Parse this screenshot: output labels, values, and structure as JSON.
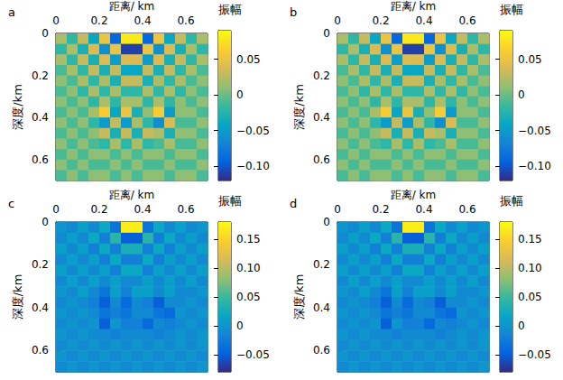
{
  "chart_data": [
    {
      "type": "heatmap",
      "title": "a",
      "xlabel": "距离/ km",
      "ylabel": "深度/km",
      "x": [
        0.025,
        0.075,
        0.125,
        0.175,
        0.225,
        0.275,
        0.325,
        0.375,
        0.425,
        0.475,
        0.525,
        0.575,
        0.625,
        0.675
      ],
      "y": [
        0.025,
        0.075,
        0.125,
        0.175,
        0.225,
        0.275,
        0.325,
        0.375,
        0.425,
        0.475,
        0.525,
        0.575,
        0.625,
        0.675
      ],
      "z": [
        [
          0.02,
          -0.02,
          0.03,
          -0.04,
          0.05,
          -0.09,
          0.08,
          0.08,
          -0.09,
          0.05,
          -0.04,
          0.03,
          -0.02,
          0.02
        ],
        [
          -0.02,
          0.02,
          -0.03,
          0.04,
          -0.06,
          0.05,
          -0.11,
          -0.11,
          0.05,
          -0.06,
          0.04,
          -0.03,
          0.02,
          -0.02
        ],
        [
          0.02,
          -0.02,
          0.03,
          -0.03,
          0.04,
          -0.05,
          0.04,
          0.04,
          -0.05,
          0.04,
          -0.03,
          0.03,
          -0.02,
          0.02
        ],
        [
          -0.01,
          0.02,
          -0.02,
          0.03,
          -0.03,
          0.03,
          -0.04,
          -0.04,
          0.03,
          -0.03,
          0.03,
          -0.02,
          0.02,
          -0.01
        ],
        [
          0.01,
          -0.01,
          0.02,
          -0.02,
          0.02,
          -0.03,
          0.03,
          0.03,
          -0.03,
          0.02,
          -0.02,
          0.02,
          -0.01,
          0.01
        ],
        [
          -0.01,
          0.01,
          -0.02,
          0.02,
          -0.02,
          0.02,
          -0.02,
          -0.02,
          0.02,
          -0.02,
          0.02,
          -0.02,
          0.01,
          -0.01
        ],
        [
          0.01,
          -0.01,
          0.01,
          -0.02,
          0.02,
          -0.02,
          0.02,
          0.02,
          -0.02,
          0.02,
          -0.02,
          0.01,
          -0.01,
          0.01
        ],
        [
          -0.01,
          0.01,
          -0.01,
          0.02,
          0.06,
          -0.04,
          0.05,
          -0.03,
          0.01,
          0.06,
          -0.05,
          0.01,
          0.01,
          -0.01
        ],
        [
          0.01,
          -0.01,
          0.01,
          -0.02,
          -0.05,
          0.03,
          -0.05,
          0.02,
          -0.02,
          -0.06,
          0.04,
          -0.01,
          -0.01,
          0.01
        ],
        [
          -0.01,
          0.01,
          -0.01,
          0.01,
          0.03,
          -0.03,
          0.03,
          -0.03,
          0.03,
          0.02,
          -0.03,
          0.01,
          0.01,
          -0.01
        ],
        [
          0.01,
          -0.01,
          0.01,
          -0.01,
          -0.02,
          0.02,
          -0.02,
          0.02,
          -0.02,
          -0.01,
          0.02,
          -0.01,
          -0.01,
          0.01
        ],
        [
          -0.01,
          0.01,
          -0.01,
          0.01,
          0.01,
          -0.01,
          0.01,
          -0.01,
          0.01,
          0.01,
          -0.01,
          0.01,
          0.01,
          -0.01
        ],
        [
          0.01,
          -0.01,
          0.01,
          -0.01,
          -0.01,
          0.01,
          -0.01,
          0.01,
          -0.01,
          -0.01,
          0.01,
          -0.01,
          -0.01,
          0.01
        ],
        [
          -0.01,
          0.01,
          -0.01,
          0.01,
          0.01,
          -0.01,
          0.01,
          -0.01,
          0.01,
          0.01,
          -0.01,
          0.01,
          0.01,
          -0.01
        ]
      ],
      "xlim": [
        0,
        0.7
      ],
      "xticks": [
        0,
        0.2,
        0.4,
        0.6
      ],
      "ylim": [
        0,
        0.7
      ],
      "yticks": [
        0,
        0.2,
        0.4,
        0.6
      ],
      "colorbar": {
        "label": "振幅",
        "range": [
          -0.12,
          0.09
        ],
        "ticks": [
          {
            "value": -0.1,
            "label": "−0.10"
          },
          {
            "value": -0.05,
            "label": "−0.05"
          },
          0,
          0.05
        ]
      }
    },
    {
      "type": "heatmap",
      "title": "b",
      "xlabel": "距离/ km",
      "ylabel": "深度/km",
      "x": [
        0.025,
        0.075,
        0.125,
        0.175,
        0.225,
        0.275,
        0.325,
        0.375,
        0.425,
        0.475,
        0.525,
        0.575,
        0.625,
        0.675
      ],
      "y": [
        0.025,
        0.075,
        0.125,
        0.175,
        0.225,
        0.275,
        0.325,
        0.375,
        0.425,
        0.475,
        0.525,
        0.575,
        0.625,
        0.675
      ],
      "z": [
        [
          0.02,
          -0.02,
          0.03,
          -0.04,
          0.05,
          -0.09,
          0.08,
          0.08,
          -0.09,
          0.05,
          -0.04,
          0.03,
          -0.02,
          0.02
        ],
        [
          -0.02,
          0.02,
          -0.03,
          0.04,
          -0.06,
          0.05,
          -0.11,
          -0.11,
          0.05,
          -0.06,
          0.04,
          -0.03,
          0.02,
          -0.02
        ],
        [
          0.02,
          -0.02,
          0.03,
          -0.03,
          0.04,
          -0.05,
          0.04,
          0.04,
          -0.05,
          0.04,
          -0.03,
          0.03,
          -0.02,
          0.02
        ],
        [
          -0.01,
          0.02,
          -0.02,
          0.03,
          -0.03,
          0.03,
          -0.04,
          -0.04,
          0.03,
          -0.03,
          0.03,
          -0.02,
          0.02,
          -0.01
        ],
        [
          0.01,
          -0.01,
          0.02,
          -0.02,
          0.02,
          -0.03,
          0.03,
          0.03,
          -0.03,
          0.02,
          -0.02,
          0.02,
          -0.01,
          0.01
        ],
        [
          -0.01,
          0.01,
          -0.02,
          0.02,
          -0.02,
          0.02,
          -0.02,
          -0.02,
          0.02,
          -0.02,
          0.02,
          -0.02,
          0.01,
          -0.01
        ],
        [
          0.01,
          -0.01,
          0.01,
          -0.02,
          0.02,
          -0.02,
          0.02,
          0.02,
          -0.02,
          0.02,
          -0.02,
          0.01,
          -0.01,
          0.01
        ],
        [
          -0.01,
          0.01,
          -0.01,
          0.02,
          0.06,
          -0.04,
          0.05,
          -0.03,
          0.01,
          0.06,
          -0.05,
          0.01,
          0.01,
          -0.01
        ],
        [
          0.01,
          -0.01,
          0.01,
          -0.02,
          -0.05,
          0.03,
          -0.05,
          0.02,
          -0.02,
          -0.06,
          0.04,
          -0.01,
          -0.01,
          0.01
        ],
        [
          -0.01,
          0.01,
          -0.01,
          0.01,
          0.03,
          -0.03,
          0.03,
          -0.03,
          0.03,
          0.02,
          -0.03,
          0.01,
          0.01,
          -0.01
        ],
        [
          0.01,
          -0.01,
          0.01,
          -0.01,
          -0.02,
          0.02,
          -0.02,
          0.02,
          -0.02,
          -0.01,
          0.02,
          -0.01,
          -0.01,
          0.01
        ],
        [
          -0.01,
          0.01,
          -0.01,
          0.01,
          0.01,
          -0.01,
          0.01,
          -0.01,
          0.01,
          0.01,
          -0.01,
          0.01,
          0.01,
          -0.01
        ],
        [
          0.01,
          -0.01,
          0.01,
          -0.01,
          -0.01,
          0.01,
          -0.01,
          0.01,
          -0.01,
          -0.01,
          0.01,
          -0.01,
          -0.01,
          0.01
        ],
        [
          -0.01,
          0.01,
          -0.01,
          0.01,
          0.01,
          -0.01,
          0.01,
          -0.01,
          0.01,
          0.01,
          -0.01,
          0.01,
          0.01,
          -0.01
        ]
      ],
      "xlim": [
        0,
        0.7
      ],
      "xticks": [
        0,
        0.2,
        0.4,
        0.6
      ],
      "ylim": [
        0,
        0.7
      ],
      "yticks": [
        0,
        0.2,
        0.4,
        0.6
      ],
      "colorbar": {
        "label": "振幅",
        "range": [
          -0.12,
          0.09
        ],
        "ticks": [
          {
            "value": -0.1,
            "label": "−0.10"
          },
          {
            "value": -0.05,
            "label": "−0.05"
          },
          0,
          0.05
        ]
      }
    },
    {
      "type": "heatmap",
      "title": "c",
      "xlabel": "距离/ km",
      "ylabel": "深度/km",
      "x": [
        0.025,
        0.075,
        0.125,
        0.175,
        0.225,
        0.275,
        0.325,
        0.375,
        0.425,
        0.475,
        0.525,
        0.575,
        0.625,
        0.675
      ],
      "y": [
        0.025,
        0.075,
        0.125,
        0.175,
        0.225,
        0.275,
        0.325,
        0.375,
        0.425,
        0.475,
        0.525,
        0.575,
        0.625,
        0.675
      ],
      "z": [
        [
          0,
          -0.01,
          0.01,
          -0.01,
          0.02,
          -0.03,
          0.17,
          0.17,
          -0.03,
          0.02,
          -0.01,
          0.01,
          -0.01,
          0
        ],
        [
          -0.01,
          0.01,
          -0.01,
          0.02,
          -0.02,
          0.04,
          -0.05,
          -0.05,
          0.04,
          -0.02,
          0.02,
          -0.01,
          0.01,
          -0.01
        ],
        [
          0.01,
          -0.01,
          0.01,
          -0.02,
          0.02,
          -0.02,
          0.03,
          0.03,
          -0.02,
          0.02,
          -0.02,
          0.01,
          -0.01,
          0.01
        ],
        [
          -0.01,
          0.01,
          -0.01,
          0.01,
          -0.02,
          0.02,
          -0.02,
          -0.02,
          0.02,
          -0.02,
          0.01,
          -0.01,
          0.01,
          -0.01
        ],
        [
          0.01,
          -0.01,
          0.01,
          -0.01,
          0.01,
          -0.02,
          0.02,
          0.02,
          -0.02,
          0.01,
          -0.01,
          0.01,
          -0.01,
          0.01
        ],
        [
          -0.01,
          0.01,
          -0.01,
          0.01,
          -0.01,
          0.01,
          -0.01,
          -0.01,
          0.01,
          -0.01,
          0.01,
          -0.01,
          0.01,
          -0.01
        ],
        [
          0,
          -0.01,
          0.01,
          -0.01,
          -0.03,
          0.01,
          -0.02,
          0.01,
          0.01,
          -0.01,
          0.01,
          -0.01,
          -0.01,
          0
        ],
        [
          -0.01,
          0,
          -0.01,
          -0.02,
          -0.05,
          -0.01,
          -0.04,
          -0.01,
          -0.02,
          -0.05,
          -0.01,
          -0.01,
          0,
          -0.01
        ],
        [
          0,
          -0.01,
          0,
          -0.01,
          -0.03,
          -0.02,
          -0.03,
          -0.01,
          -0.01,
          -0.03,
          -0.04,
          0,
          -0.01,
          0
        ],
        [
          -0.01,
          0,
          -0.01,
          0,
          -0.05,
          0,
          -0.02,
          -0.02,
          -0.04,
          -0.01,
          -0.02,
          -0.01,
          0,
          -0.01
        ],
        [
          0,
          -0.01,
          0,
          -0.01,
          -0.01,
          -0.02,
          -0.01,
          -0.01,
          -0.01,
          -0.02,
          -0.01,
          0,
          -0.01,
          0
        ],
        [
          -0.01,
          0,
          -0.01,
          0,
          -0.01,
          0,
          -0.01,
          0,
          -0.01,
          0,
          -0.01,
          0,
          -0.01,
          0
        ],
        [
          0,
          -0.01,
          0,
          -0.01,
          0,
          -0.01,
          0,
          -0.01,
          0,
          -0.01,
          0,
          -0.01,
          0,
          -0.01
        ],
        [
          -0.01,
          0,
          -0.01,
          0,
          -0.01,
          0,
          -0.01,
          0,
          -0.01,
          0,
          -0.01,
          0,
          -0.01,
          0
        ]
      ],
      "xlim": [
        0,
        0.7
      ],
      "xticks": [
        0,
        0.2,
        0.4,
        0.6
      ],
      "ylim": [
        0,
        0.7
      ],
      "yticks": [
        0,
        0.2,
        0.4,
        0.6
      ],
      "colorbar": {
        "label": "振幅",
        "range": [
          -0.08,
          0.18
        ],
        "ticks": [
          {
            "value": -0.05,
            "label": "−0.05"
          },
          0,
          0.05,
          {
            "value": 0.1,
            "label": "0.10"
          },
          0.15
        ]
      }
    },
    {
      "type": "heatmap",
      "title": "d",
      "xlabel": "距离/ km",
      "ylabel": "深度/km",
      "x": [
        0.025,
        0.075,
        0.125,
        0.175,
        0.225,
        0.275,
        0.325,
        0.375,
        0.425,
        0.475,
        0.525,
        0.575,
        0.625,
        0.675
      ],
      "y": [
        0.025,
        0.075,
        0.125,
        0.175,
        0.225,
        0.275,
        0.325,
        0.375,
        0.425,
        0.475,
        0.525,
        0.575,
        0.625,
        0.675
      ],
      "z": [
        [
          0,
          -0.01,
          0.01,
          -0.01,
          0.02,
          -0.03,
          0.17,
          0.17,
          -0.03,
          0.02,
          -0.01,
          0.01,
          -0.01,
          0
        ],
        [
          -0.01,
          0.01,
          -0.01,
          0.02,
          -0.02,
          0.04,
          -0.05,
          -0.05,
          0.04,
          -0.02,
          0.02,
          -0.01,
          0.01,
          -0.01
        ],
        [
          0.01,
          -0.01,
          0.01,
          -0.02,
          0.02,
          -0.02,
          0.03,
          0.03,
          -0.02,
          0.02,
          -0.02,
          0.01,
          -0.01,
          0.01
        ],
        [
          -0.01,
          0.01,
          -0.01,
          0.01,
          -0.02,
          0.02,
          -0.02,
          -0.02,
          0.02,
          -0.02,
          0.01,
          -0.01,
          0.01,
          -0.01
        ],
        [
          0.01,
          -0.01,
          0.01,
          -0.01,
          0.01,
          -0.02,
          0.02,
          0.02,
          -0.02,
          0.01,
          -0.01,
          0.01,
          -0.01,
          0.01
        ],
        [
          -0.01,
          0.01,
          -0.01,
          0.01,
          -0.01,
          0.01,
          -0.01,
          -0.01,
          0.01,
          -0.01,
          0.01,
          -0.01,
          0.01,
          -0.01
        ],
        [
          0,
          -0.01,
          0.01,
          -0.01,
          -0.03,
          0.01,
          -0.02,
          0.01,
          0.01,
          -0.01,
          0.01,
          -0.01,
          -0.01,
          0
        ],
        [
          -0.01,
          0,
          -0.01,
          -0.02,
          -0.05,
          -0.01,
          -0.04,
          -0.01,
          -0.02,
          -0.05,
          -0.01,
          -0.01,
          0,
          -0.01
        ],
        [
          0,
          -0.01,
          0,
          -0.01,
          -0.03,
          -0.02,
          -0.03,
          -0.01,
          -0.01,
          -0.03,
          -0.04,
          0,
          -0.01,
          0
        ],
        [
          -0.01,
          0,
          -0.01,
          0,
          -0.05,
          0,
          -0.02,
          -0.02,
          -0.04,
          -0.01,
          -0.02,
          -0.01,
          0,
          -0.01
        ],
        [
          0,
          -0.01,
          0,
          -0.01,
          -0.01,
          -0.02,
          -0.01,
          -0.01,
          -0.01,
          -0.02,
          -0.01,
          0,
          -0.01,
          0
        ],
        [
          -0.01,
          0,
          -0.01,
          0,
          -0.01,
          0,
          -0.01,
          0,
          -0.01,
          0,
          -0.01,
          0,
          -0.01,
          0
        ],
        [
          0,
          -0.01,
          0,
          -0.01,
          0,
          -0.01,
          0,
          -0.01,
          0,
          -0.01,
          0,
          -0.01,
          0,
          -0.01
        ],
        [
          -0.01,
          0,
          -0.01,
          0,
          -0.01,
          0,
          -0.01,
          0,
          -0.01,
          0,
          -0.01,
          0,
          -0.01,
          0
        ]
      ],
      "xlim": [
        0,
        0.7
      ],
      "xticks": [
        0,
        0.2,
        0.4,
        0.6
      ],
      "ylim": [
        0,
        0.7
      ],
      "yticks": [
        0,
        0.2,
        0.4,
        0.6
      ],
      "colorbar": {
        "label": "振幅",
        "range": [
          -0.08,
          0.18
        ],
        "ticks": [
          {
            "value": -0.05,
            "label": "−0.05"
          },
          0,
          0.05,
          {
            "value": 0.1,
            "label": "0.10"
          },
          0.15
        ]
      }
    }
  ]
}
